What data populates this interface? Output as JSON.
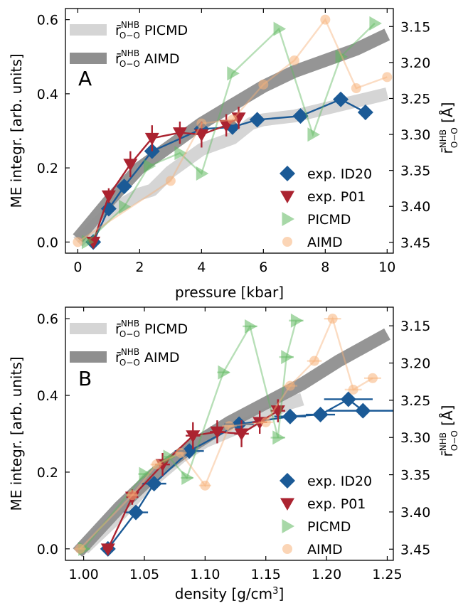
{
  "chart_data": [
    {
      "panel_label": "A",
      "type": "scatter",
      "xlabel": "pressure [kbar]",
      "ylabel": "ME integr. [arb. units]",
      "ylabel_right": "r̄",
      "ylabel_right_sup": "NHB",
      "ylabel_right_sub": "O−O",
      "ylabel_right_unit": "[Å]",
      "xlim": [
        -0.4,
        10.2
      ],
      "ylim": [
        -0.03,
        0.63
      ],
      "y2lim": [
        3.465,
        3.125
      ],
      "xticks": [
        0,
        2,
        4,
        6,
        8,
        10
      ],
      "yticks": [
        0.0,
        0.2,
        0.4,
        0.6
      ],
      "y2ticks": [
        3.15,
        3.2,
        3.25,
        3.3,
        3.35,
        3.4,
        3.45
      ],
      "xtick_labels": [
        "0",
        "2",
        "4",
        "6",
        "8",
        "10"
      ],
      "ytick_labels": [
        "0.0",
        "0.2",
        "0.4",
        "0.6"
      ],
      "y2tick_labels": [
        "3.15",
        "3.20",
        "3.25",
        "3.30",
        "3.35",
        "3.40",
        "3.45"
      ],
      "bands": [
        {
          "name": "PICMD",
          "sub": "O−O",
          "sup": "NHB",
          "prefix": "r̄",
          "color": "#d5d5d5",
          "x": [
            0.0,
            1.0,
            2.0,
            2.4,
            3.0,
            4.0,
            5.0,
            5.6,
            6.0,
            7.0,
            8.0,
            9.0,
            10.0
          ],
          "y": [
            0.0,
            0.08,
            0.13,
            0.14,
            0.19,
            0.25,
            0.28,
            0.32,
            0.33,
            0.34,
            0.36,
            0.38,
            0.4
          ]
        },
        {
          "name": "AIMD",
          "sub": "O−O",
          "sup": "NHB",
          "prefix": "r̄",
          "color": "#8f8f8f",
          "x": [
            0.0,
            1.0,
            2.0,
            3.0,
            4.0,
            5.0,
            6.0,
            7.0,
            8.0,
            9.0,
            10.0
          ],
          "y": [
            0.01,
            0.11,
            0.2,
            0.26,
            0.32,
            0.37,
            0.42,
            0.46,
            0.49,
            0.52,
            0.56
          ]
        }
      ],
      "series": [
        {
          "name": "exp. ID20",
          "marker": "diamond",
          "color": "#1b5a96",
          "line_alpha": 1.0,
          "x": [
            0.5,
            1.0,
            1.5,
            2.4,
            4.0,
            5.0,
            5.8,
            7.2,
            8.5,
            9.3
          ],
          "y": [
            0.0,
            0.09,
            0.15,
            0.245,
            0.305,
            0.31,
            0.33,
            0.34,
            0.385,
            0.35
          ],
          "yerr": [
            0,
            0,
            0,
            0,
            0,
            0,
            0,
            0,
            0,
            0.02
          ]
        },
        {
          "name": "exp. P01",
          "marker": "triangle-down",
          "color": "#ab2330",
          "line_alpha": 1.0,
          "x": [
            0.5,
            1.0,
            1.7,
            2.4,
            3.3,
            4.0,
            4.8,
            5.2
          ],
          "y": [
            0.0,
            0.125,
            0.21,
            0.28,
            0.295,
            0.29,
            0.315,
            0.335
          ],
          "yerr": [
            0.01,
            0.02,
            0.035,
            0.035,
            0.03,
            0.035,
            0.03,
            0.03
          ]
        },
        {
          "name": "PICMD",
          "marker": "triangle-right",
          "color": "#5fb85f",
          "line_alpha": 0.45,
          "x": [
            0.3,
            1.5,
            2.3,
            3.3,
            4.0,
            5.0,
            6.5,
            7.6,
            8.5,
            9.6
          ],
          "y": [
            0.0,
            0.095,
            0.205,
            0.24,
            0.185,
            0.455,
            0.575,
            0.29,
            0.5,
            0.59
          ],
          "yerr": [
            0,
            0,
            0,
            0,
            0,
            0,
            0,
            0,
            0,
            0
          ]
        },
        {
          "name": "AIMD",
          "marker": "circle",
          "color": "#f7b27a",
          "line_alpha": 0.45,
          "x": [
            0.0,
            3.0,
            4.0,
            5.0,
            6.0,
            7.0,
            8.0,
            9.0,
            10.0
          ],
          "y": [
            0.0,
            0.165,
            0.32,
            0.33,
            0.425,
            0.49,
            0.6,
            0.415,
            0.445
          ],
          "yerr": [
            0,
            0,
            0,
            0,
            0,
            0,
            0,
            0,
            0
          ]
        }
      ]
    },
    {
      "panel_label": "B",
      "type": "scatter",
      "xlabel": "density [g/cm",
      "xlabel_sup": "3",
      "xlabel_end": "]",
      "ylabel": "ME integr. [arb. units]",
      "ylabel_right": "r̄",
      "ylabel_right_sup": "NHB",
      "ylabel_right_sub": "O−O",
      "ylabel_right_unit": "[Å]",
      "xlim": [
        0.985,
        1.255
      ],
      "ylim": [
        -0.03,
        0.63
      ],
      "y2lim": [
        3.465,
        3.125
      ],
      "xticks": [
        1.0,
        1.05,
        1.1,
        1.15,
        1.2,
        1.25
      ],
      "yticks": [
        0.0,
        0.2,
        0.4,
        0.6
      ],
      "y2ticks": [
        3.15,
        3.2,
        3.25,
        3.3,
        3.35,
        3.4,
        3.45
      ],
      "xtick_labels": [
        "1.00",
        "1.05",
        "1.10",
        "1.15",
        "1.20",
        "1.25"
      ],
      "ytick_labels": [
        "0.0",
        "0.2",
        "0.4",
        "0.6"
      ],
      "y2tick_labels": [
        "3.15",
        "3.20",
        "3.25",
        "3.30",
        "3.35",
        "3.40",
        "3.45"
      ],
      "bands": [
        {
          "name": "PICMD",
          "sub": "O−O",
          "sup": "NHB",
          "prefix": "r̄",
          "color": "#d5d5d5",
          "x": [
            1.0,
            1.03,
            1.05,
            1.08,
            1.1,
            1.13,
            1.15,
            1.17,
            1.18
          ],
          "y": [
            0.0,
            0.09,
            0.16,
            0.24,
            0.28,
            0.32,
            0.35,
            0.38,
            0.39
          ]
        },
        {
          "name": "AIMD",
          "sub": "O−O",
          "sup": "NHB",
          "prefix": "r̄",
          "color": "#8f8f8f",
          "x": [
            0.995,
            1.03,
            1.06,
            1.09,
            1.12,
            1.15,
            1.18,
            1.21,
            1.25
          ],
          "y": [
            -0.01,
            0.11,
            0.2,
            0.27,
            0.33,
            0.38,
            0.43,
            0.49,
            0.56
          ]
        }
      ],
      "series": [
        {
          "name": "exp. ID20",
          "marker": "diamond",
          "color": "#1b5a96",
          "line_alpha": 1.0,
          "x": [
            1.02,
            1.043,
            1.058,
            1.087,
            1.128,
            1.17,
            1.195,
            1.218,
            1.23
          ],
          "y": [
            0.0,
            0.095,
            0.17,
            0.255,
            0.325,
            0.345,
            0.35,
            0.39,
            0.36
          ],
          "xerr": [
            0.005,
            0.01,
            0.01,
            0.012,
            0.012,
            0.013,
            0.012,
            0.02,
            0.03
          ]
        },
        {
          "name": "exp. P01",
          "marker": "triangle-down",
          "color": "#ab2330",
          "line_alpha": 1.0,
          "x": [
            1.02,
            1.04,
            1.065,
            1.09,
            1.11,
            1.13,
            1.145,
            1.16
          ],
          "y": [
            0.0,
            0.135,
            0.22,
            0.295,
            0.305,
            0.3,
            0.33,
            0.36
          ],
          "xerr": [
            0.004,
            0.005,
            0.006,
            0.006,
            0.006,
            0.006,
            0.006,
            0.006
          ],
          "yerr": [
            0.01,
            0.02,
            0.03,
            0.035,
            0.03,
            0.035,
            0.03,
            0.03
          ]
        },
        {
          "name": "PICMD",
          "marker": "triangle-right",
          "color": "#5fb85f",
          "line_alpha": 0.45,
          "x": [
            1.0,
            1.05,
            1.07,
            1.085,
            1.115,
            1.137,
            1.16,
            1.167,
            1.175
          ],
          "y": [
            0.0,
            0.195,
            0.24,
            0.185,
            0.46,
            0.58,
            0.29,
            0.5,
            0.595
          ],
          "xerr": [
            0.005,
            0.005,
            0.005,
            0.005,
            0.005,
            0.006,
            0.006,
            0.006,
            0.006
          ]
        },
        {
          "name": "AIMD",
          "marker": "circle",
          "color": "#f7b27a",
          "line_alpha": 0.45,
          "x": [
            0.997,
            1.04,
            1.06,
            1.08,
            1.1,
            1.12,
            1.15,
            1.17,
            1.19,
            1.205,
            1.222,
            1.238
          ],
          "y": [
            0.0,
            0.14,
            0.22,
            0.25,
            0.165,
            0.32,
            0.33,
            0.425,
            0.49,
            0.6,
            0.415,
            0.445
          ],
          "xerr": [
            0.005,
            0.005,
            0.005,
            0.005,
            0.005,
            0.006,
            0.006,
            0.006,
            0.006,
            0.007,
            0.007,
            0.007
          ]
        }
      ]
    }
  ]
}
